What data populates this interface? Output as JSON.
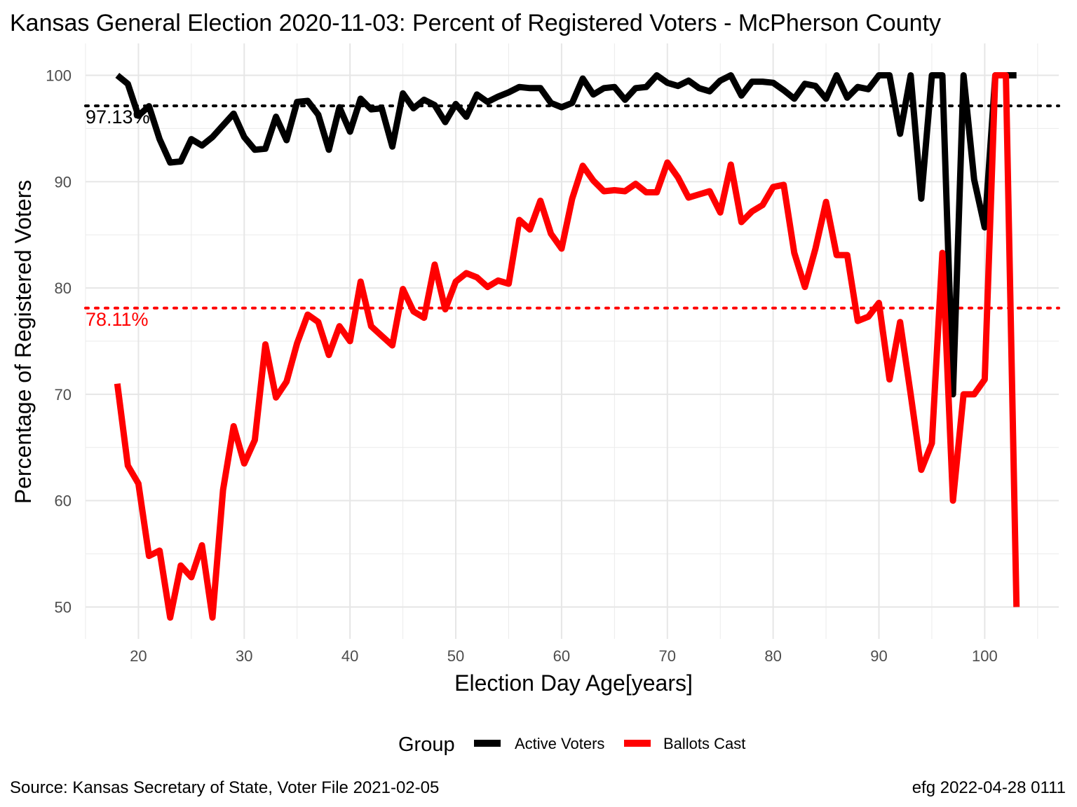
{
  "chart_data": {
    "type": "line",
    "title": "Kansas General Election 2020-11-03:  Percent of Registered Voters - McPherson County",
    "xlabel": "Election Day Age[years]",
    "ylabel": "Percentage of Registered Voters",
    "xlim": [
      15,
      107
    ],
    "ylim": [
      47,
      103
    ],
    "x_ticks": [
      20,
      30,
      40,
      50,
      60,
      70,
      80,
      90,
      100
    ],
    "y_ticks": [
      50,
      60,
      70,
      80,
      90,
      100
    ],
    "grid": true,
    "legend": {
      "title": "Group",
      "position": "bottom",
      "entries": [
        {
          "label": "Active Voters",
          "color": "#000000"
        },
        {
          "label": "Ballots Cast",
          "color": "#ff0000"
        }
      ]
    },
    "reference_lines": [
      {
        "value": 97.13,
        "label": "97.13%",
        "color": "#000000",
        "style": "dotted"
      },
      {
        "value": 78.11,
        "label": "78.11%",
        "color": "#ff0000",
        "style": "dotted"
      }
    ],
    "series": [
      {
        "name": "Active Voters",
        "color": "#000000",
        "x": [
          18,
          19,
          20,
          21,
          22,
          23,
          24,
          25,
          26,
          27,
          28,
          29,
          30,
          31,
          32,
          33,
          34,
          35,
          36,
          37,
          38,
          39,
          40,
          41,
          42,
          43,
          44,
          45,
          46,
          47,
          48,
          49,
          50,
          51,
          52,
          53,
          54,
          55,
          56,
          57,
          58,
          59,
          60,
          61,
          62,
          63,
          64,
          65,
          66,
          67,
          68,
          69,
          70,
          71,
          72,
          73,
          74,
          75,
          76,
          77,
          78,
          79,
          80,
          81,
          82,
          83,
          84,
          85,
          86,
          87,
          88,
          89,
          90,
          91,
          92,
          93,
          94,
          95,
          96,
          97,
          98,
          99,
          100,
          101,
          102,
          103
        ],
        "values": [
          100,
          99.2,
          96.2,
          97.1,
          94,
          91.8,
          91.9,
          94,
          93.4,
          94.2,
          95.3,
          96.4,
          94.2,
          93,
          93.1,
          96.1,
          93.9,
          97.5,
          97.6,
          96.3,
          93,
          97,
          94.7,
          97.8,
          96.8,
          96.9,
          93.3,
          98.3,
          96.9,
          97.7,
          97.2,
          95.6,
          97.3,
          96.1,
          98.2,
          97.5,
          98,
          98.4,
          98.9,
          98.8,
          98.8,
          97.4,
          97,
          97.4,
          99.7,
          98.2,
          98.8,
          98.9,
          97.7,
          98.8,
          98.9,
          100,
          99.3,
          99,
          99.5,
          98.8,
          98.5,
          99.5,
          100,
          98.1,
          99.4,
          99.4,
          99.3,
          98.6,
          97.8,
          99.2,
          99,
          97.8,
          100,
          97.9,
          98.9,
          98.7,
          100,
          100,
          94.5,
          100,
          88.4,
          100,
          100,
          70,
          100,
          90.2,
          85.7,
          100,
          100,
          100
        ]
      },
      {
        "name": "Ballots Cast",
        "color": "#ff0000",
        "x": [
          18,
          19,
          20,
          21,
          22,
          23,
          24,
          25,
          26,
          27,
          28,
          29,
          30,
          31,
          32,
          33,
          34,
          35,
          36,
          37,
          38,
          39,
          40,
          41,
          42,
          43,
          44,
          45,
          46,
          47,
          48,
          49,
          50,
          51,
          52,
          53,
          54,
          55,
          56,
          57,
          58,
          59,
          60,
          61,
          62,
          63,
          64,
          65,
          66,
          67,
          68,
          69,
          70,
          71,
          72,
          73,
          74,
          75,
          76,
          77,
          78,
          79,
          80,
          81,
          82,
          83,
          84,
          85,
          86,
          87,
          88,
          89,
          90,
          91,
          92,
          93,
          94,
          95,
          96,
          97,
          98,
          99,
          100,
          101,
          102,
          103
        ],
        "values": [
          71,
          63.3,
          61.6,
          54.8,
          55.3,
          49,
          53.9,
          52.8,
          55.8,
          49,
          61,
          67,
          63.5,
          65.7,
          74.7,
          69.7,
          71.2,
          74.8,
          77.5,
          76.8,
          73.7,
          76.4,
          75,
          80.6,
          76.4,
          75.5,
          74.6,
          79.9,
          77.8,
          77.2,
          82.2,
          78,
          80.6,
          81.4,
          81,
          80.1,
          80.7,
          80.4,
          86.4,
          85.5,
          88.2,
          85.1,
          83.7,
          88.4,
          91.5,
          90.1,
          89.1,
          89.2,
          89.1,
          89.8,
          89,
          89,
          91.8,
          90.4,
          88.5,
          88.8,
          89.1,
          87.1,
          91.6,
          86.2,
          87.2,
          87.8,
          89.5,
          89.7,
          83.3,
          80.1,
          83.7,
          88.1,
          83.1,
          83.1,
          76.9,
          77.3,
          78.6,
          71.4,
          76.8,
          70,
          62.9,
          65.4,
          83.3,
          60,
          70,
          70,
          71.4,
          100,
          100,
          50
        ]
      }
    ],
    "annotations": [
      {
        "text": "97.13%",
        "color": "#000000"
      },
      {
        "text": "78.11%",
        "color": "#ff0000"
      }
    ]
  },
  "caption_left": "Source:  Kansas Secretary of State, Voter File  2021-02-05",
  "caption_right": "efg 2022-04-28 0111"
}
